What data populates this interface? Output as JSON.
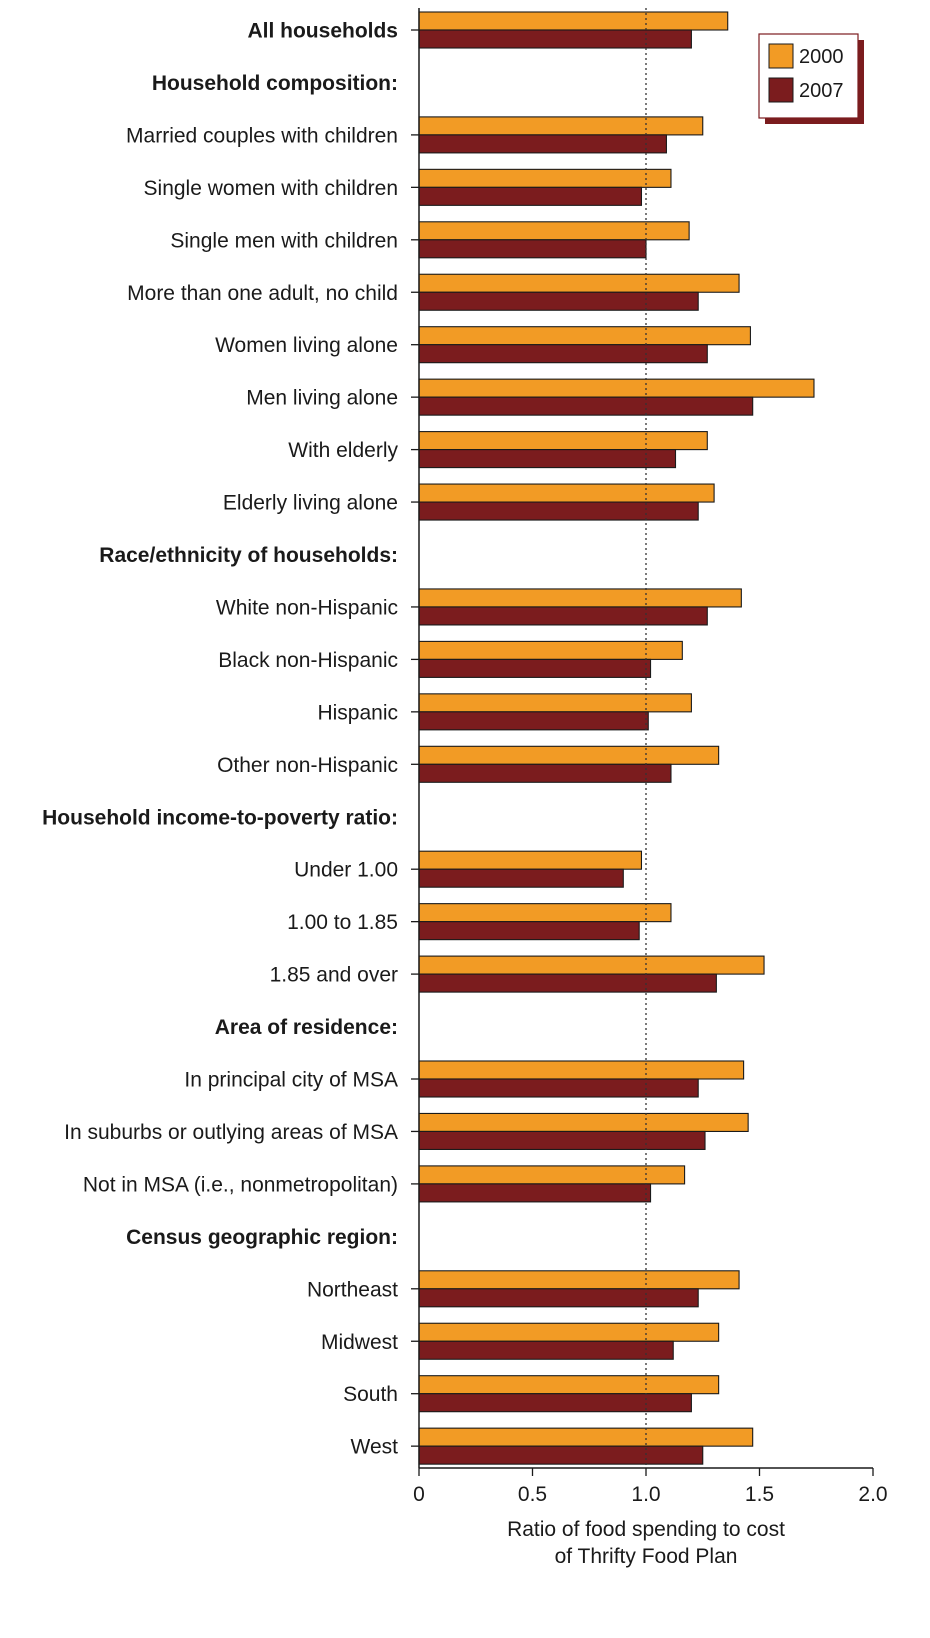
{
  "chart_data": {
    "type": "bar",
    "orientation": "horizontal",
    "title": "",
    "xlabel": [
      "Ratio of food spending to cost",
      "of Thrifty Food Plan"
    ],
    "ylabel": "",
    "xlim": [
      0,
      2.0
    ],
    "xticks": [
      "0",
      "0.5",
      "1.0",
      "1.5",
      "2.0"
    ],
    "reference_line": 1.0,
    "grid": false,
    "legend_position": "top-right",
    "series": [
      {
        "name": "2000",
        "color": "#F29B25"
      },
      {
        "name": "2007",
        "color": "#7B1C1E"
      }
    ],
    "rows": [
      {
        "label": "All households",
        "bold": true,
        "values": [
          1.36,
          1.2
        ]
      },
      {
        "label": "Household composition:",
        "header": true
      },
      {
        "label": "Married couples with children",
        "values": [
          1.25,
          1.09
        ]
      },
      {
        "label": "Single women with children",
        "values": [
          1.11,
          0.98
        ]
      },
      {
        "label": "Single men with children",
        "values": [
          1.19,
          1.0
        ]
      },
      {
        "label": "More than one adult, no child",
        "values": [
          1.41,
          1.23
        ]
      },
      {
        "label": "Women living alone",
        "values": [
          1.46,
          1.27
        ]
      },
      {
        "label": "Men living alone",
        "values": [
          1.74,
          1.47
        ]
      },
      {
        "label": "With elderly",
        "values": [
          1.27,
          1.13
        ]
      },
      {
        "label": "Elderly living alone",
        "values": [
          1.3,
          1.23
        ]
      },
      {
        "label": "Race/ethnicity of households:",
        "header": true
      },
      {
        "label": "White non-Hispanic",
        "values": [
          1.42,
          1.27
        ]
      },
      {
        "label": "Black non-Hispanic",
        "values": [
          1.16,
          1.02
        ]
      },
      {
        "label": "Hispanic",
        "values": [
          1.2,
          1.01
        ]
      },
      {
        "label": "Other non-Hispanic",
        "values": [
          1.32,
          1.11
        ]
      },
      {
        "label": "Household income-to-poverty ratio:",
        "header": true
      },
      {
        "label": "Under 1.00",
        "values": [
          0.98,
          0.9
        ]
      },
      {
        "label": "1.00 to 1.85",
        "values": [
          1.11,
          0.97
        ]
      },
      {
        "label": "1.85 and over",
        "values": [
          1.52,
          1.31
        ]
      },
      {
        "label": "Area of residence:",
        "header": true
      },
      {
        "label": "In principal city of MSA",
        "values": [
          1.43,
          1.23
        ]
      },
      {
        "label": "In suburbs or outlying areas of MSA",
        "values": [
          1.45,
          1.26
        ]
      },
      {
        "label": "Not in MSA (i.e., nonmetropolitan)",
        "values": [
          1.17,
          1.02
        ]
      },
      {
        "label": "Census geographic region:",
        "header": true
      },
      {
        "label": "Northeast",
        "values": [
          1.41,
          1.23
        ]
      },
      {
        "label": "Midwest",
        "values": [
          1.32,
          1.12
        ]
      },
      {
        "label": "South",
        "values": [
          1.32,
          1.2
        ]
      },
      {
        "label": "West",
        "values": [
          1.47,
          1.25
        ]
      }
    ]
  }
}
